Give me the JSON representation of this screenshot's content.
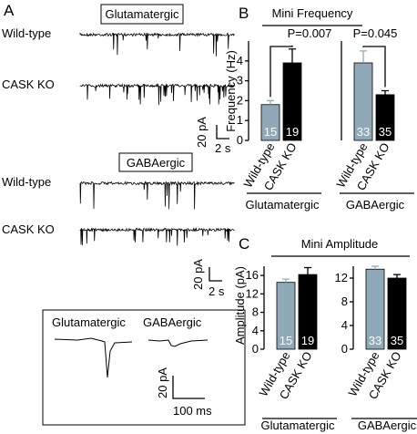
{
  "panel_a": {
    "label": "A",
    "glutamatergic": {
      "title": "Glutamatergic",
      "rows": [
        "Wild-type",
        "CASK KO"
      ],
      "scale_y": "20 pA",
      "scale_x": "2 s"
    },
    "gabaergic": {
      "title": "GABAergic",
      "rows": [
        "Wild-type",
        "CASK KO"
      ],
      "scale_y": "20 pA",
      "scale_x": "2 s"
    },
    "inset": {
      "labels": [
        "Glutamatergic",
        "GABAergic"
      ],
      "scale_y": "20 pA",
      "scale_x": "100 ms"
    }
  },
  "chart_data": [
    {
      "type": "bar",
      "panel_label": "B",
      "title": "Mini Frequency",
      "y_label": "Frequency (Hz)",
      "colors": [
        "#8fa9b8",
        "#000000"
      ],
      "subplots": [
        {
          "group": "Glutamatergic",
          "categories": [
            "Wild-type",
            "CASK KO"
          ],
          "values": [
            1.8,
            3.9
          ],
          "errors": [
            0.2,
            0.7
          ],
          "n_labels": [
            "15",
            "19"
          ],
          "p_value": "P=0.007",
          "ylim": [
            0,
            5
          ],
          "yticks": [
            0,
            1,
            2,
            3,
            4
          ]
        },
        {
          "group": "GABAergic",
          "categories": [
            "Wild-type",
            "CASK KO"
          ],
          "values": [
            3.9,
            2.3
          ],
          "errors": [
            0.6,
            0.2
          ],
          "n_labels": [
            "33",
            "35"
          ],
          "p_value": "P=0.045",
          "ylim": [
            0,
            5
          ]
        }
      ]
    },
    {
      "type": "bar",
      "panel_label": "C",
      "title": "Mini Amplitude",
      "y_label": "Amplitude (pA)",
      "colors": [
        "#8fa9b8",
        "#000000"
      ],
      "subplots": [
        {
          "group": "Glutamatergic",
          "categories": [
            "Wild-type",
            "CASK KO"
          ],
          "values": [
            14.5,
            16.2
          ],
          "errors": [
            0.7,
            1.5
          ],
          "n_labels": [
            "15",
            "19"
          ],
          "ylim": [
            0,
            18
          ],
          "yticks": [
            0,
            4,
            8,
            12,
            16
          ]
        },
        {
          "group": "GABAergic",
          "categories": [
            "Wild-type",
            "CASK KO"
          ],
          "values": [
            13.5,
            12
          ],
          "errors": [
            0.5,
            0.6
          ],
          "n_labels": [
            "33",
            "35"
          ],
          "ylim": [
            0,
            14
          ],
          "yticks": [
            0,
            4,
            8,
            12
          ]
        }
      ]
    }
  ]
}
